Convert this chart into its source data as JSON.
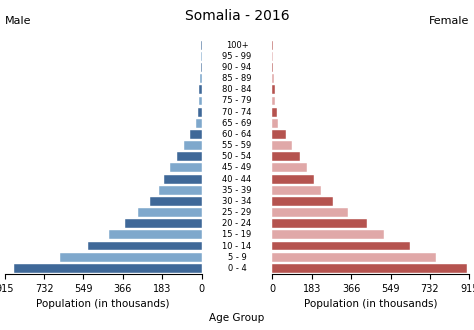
{
  "title": "Somalia - 2016",
  "age_groups": [
    "100+",
    "95 - 99",
    "90 - 94",
    "85 - 89",
    "80 - 84",
    "75 - 79",
    "70 - 74",
    "65 - 69",
    "60 - 64",
    "55 - 59",
    "50 - 54",
    "45 - 49",
    "40 - 44",
    "35 - 39",
    "30 - 34",
    "25 - 29",
    "20 - 24",
    "15 - 19",
    "10 - 14",
    "5 - 9",
    "0 - 4"
  ],
  "male": [
    2,
    3,
    4,
    5,
    10,
    12,
    18,
    25,
    55,
    80,
    115,
    145,
    175,
    200,
    240,
    295,
    355,
    430,
    530,
    660,
    870
  ],
  "female": [
    2,
    3,
    4,
    5,
    10,
    13,
    20,
    27,
    65,
    90,
    130,
    160,
    195,
    225,
    280,
    350,
    440,
    520,
    640,
    760,
    905
  ],
  "male_dark": "#3f6898",
  "male_light": "#7fa8cc",
  "female_dark": "#b5534f",
  "female_light": "#e0a8a8",
  "xlabel_left": "Population (in thousands)",
  "xlabel_right": "Population (in thousands)",
  "xlabel_center": "Age Group",
  "label_male": "Male",
  "label_female": "Female",
  "xlim": 915,
  "xticks": [
    0,
    183,
    366,
    549,
    732,
    915
  ],
  "background_color": "#ffffff",
  "bar_height": 0.8
}
